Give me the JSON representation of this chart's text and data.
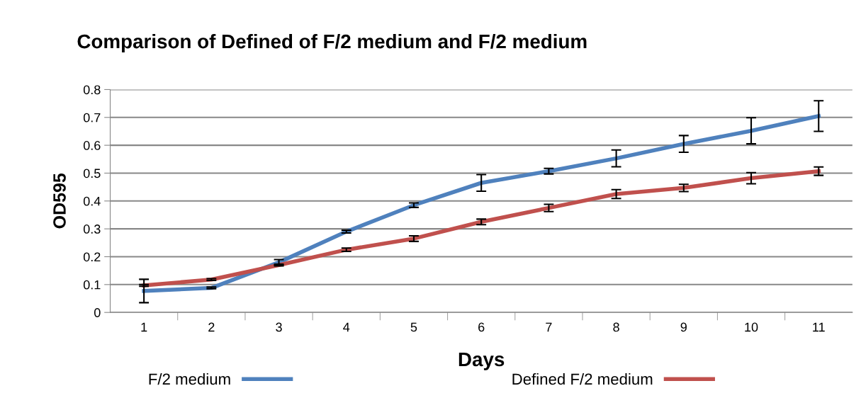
{
  "chart_data": {
    "type": "line",
    "title": "Comparison of Defined of F/2 medium and F/2 medium",
    "xlabel": "Days",
    "ylabel": "OD595",
    "categories": [
      "1",
      "2",
      "3",
      "4",
      "5",
      "6",
      "7",
      "8",
      "9",
      "10",
      "11"
    ],
    "series": [
      {
        "name": "F/2 medium",
        "color": "#4f81bd",
        "values": [
          0.077,
          0.088,
          0.18,
          0.29,
          0.385,
          0.465,
          0.507,
          0.553,
          0.605,
          0.652,
          0.705
        ],
        "errors": [
          0.042,
          0.003,
          0.01,
          0.005,
          0.008,
          0.03,
          0.01,
          0.03,
          0.03,
          0.047,
          0.055
        ]
      },
      {
        "name": "Defined F/2 medium",
        "color": "#c0504d",
        "values": [
          0.097,
          0.118,
          0.17,
          0.225,
          0.265,
          0.325,
          0.375,
          0.425,
          0.447,
          0.482,
          0.507
        ],
        "errors": [
          0.003,
          0.003,
          0.003,
          0.006,
          0.01,
          0.01,
          0.013,
          0.016,
          0.013,
          0.02,
          0.015
        ]
      }
    ],
    "ylim": [
      0,
      0.8
    ],
    "yticks": [
      0,
      0.1,
      0.2,
      0.3,
      0.4,
      0.5,
      0.6,
      0.7,
      0.8
    ],
    "grid": "y",
    "legend": "bottom",
    "marker": "none",
    "line_style": "solid"
  }
}
